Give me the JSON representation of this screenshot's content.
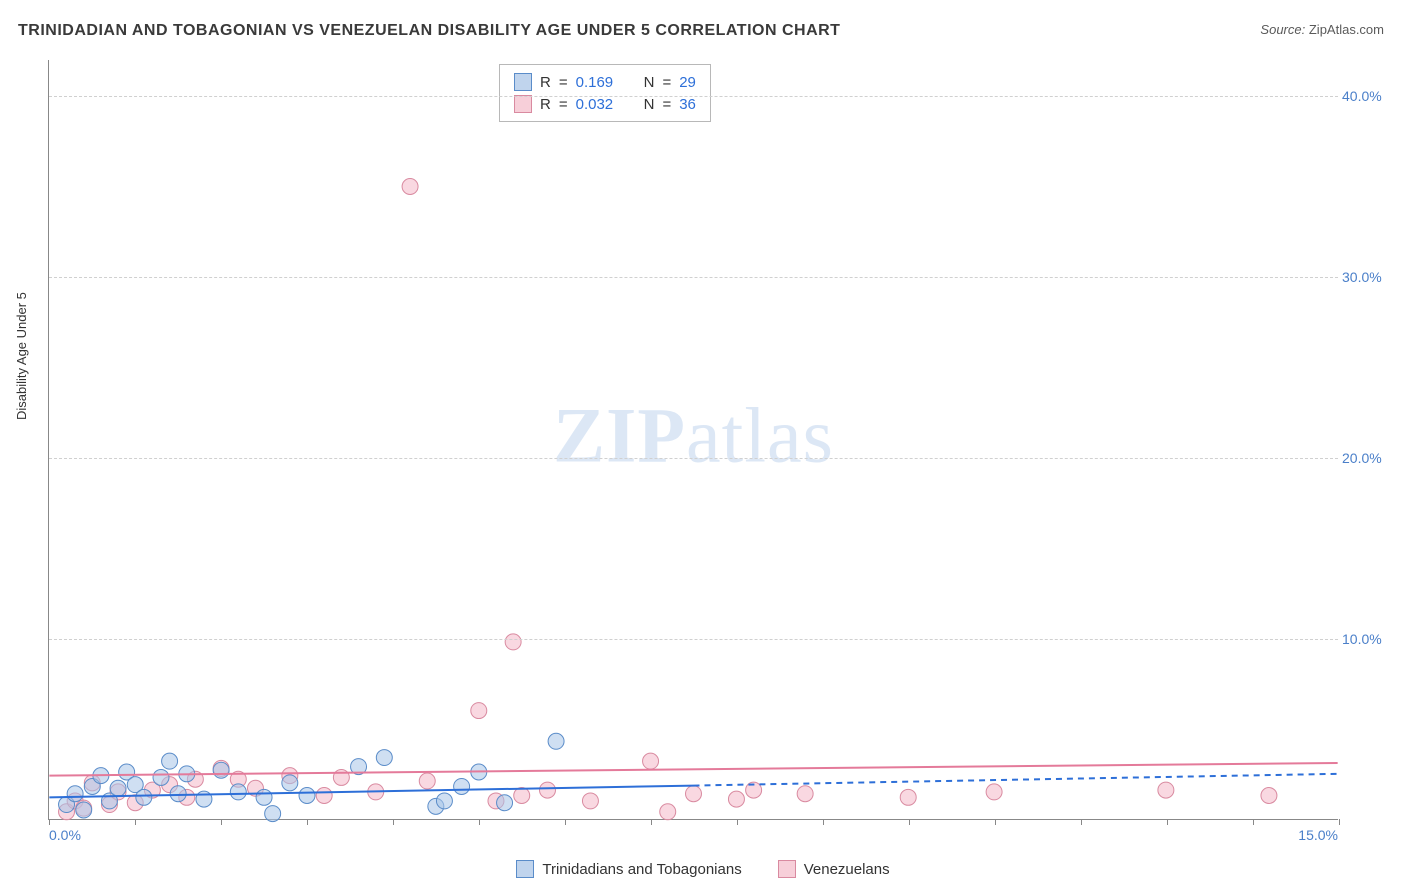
{
  "title": "TRINIDADIAN AND TOBAGONIAN VS VENEZUELAN DISABILITY AGE UNDER 5 CORRELATION CHART",
  "source_label": "Source:",
  "source_value": "ZipAtlas.com",
  "y_axis_label": "Disability Age Under 5",
  "watermark_zip": "ZIP",
  "watermark_atlas": "atlas",
  "chart": {
    "type": "scatter",
    "xlim": [
      0,
      15
    ],
    "ylim": [
      0,
      42
    ],
    "x_origin_label": "0.0%",
    "x_max_label": "15.0%",
    "y_ticks": [
      10,
      20,
      30,
      40
    ],
    "y_tick_labels": [
      "10.0%",
      "20.0%",
      "30.0%",
      "40.0%"
    ],
    "x_tick_step": 1,
    "background_color": "#ffffff",
    "grid_color": "#d0d0d0",
    "axis_color": "#888888",
    "tick_label_color": "#4a7fc9",
    "marker_radius": 8,
    "marker_opacity": 0.55,
    "series": {
      "blue": {
        "label": "Trinidadians and Tobagonians",
        "fill": "#a7c5e8",
        "stroke": "#5a8cc9",
        "R": "0.169",
        "N": "29",
        "trend": {
          "y_at_x0": 1.2,
          "y_at_x15": 2.5,
          "dash_after_x": 7.5,
          "color": "#2d6fd8",
          "width": 2
        },
        "points": [
          {
            "x": 0.2,
            "y": 0.8
          },
          {
            "x": 0.3,
            "y": 1.4
          },
          {
            "x": 0.4,
            "y": 0.5
          },
          {
            "x": 0.5,
            "y": 1.8
          },
          {
            "x": 0.6,
            "y": 2.4
          },
          {
            "x": 0.7,
            "y": 1.0
          },
          {
            "x": 0.8,
            "y": 1.7
          },
          {
            "x": 0.9,
            "y": 2.6
          },
          {
            "x": 1.0,
            "y": 1.9
          },
          {
            "x": 1.1,
            "y": 1.2
          },
          {
            "x": 1.3,
            "y": 2.3
          },
          {
            "x": 1.4,
            "y": 3.2
          },
          {
            "x": 1.5,
            "y": 1.4
          },
          {
            "x": 1.6,
            "y": 2.5
          },
          {
            "x": 1.8,
            "y": 1.1
          },
          {
            "x": 2.0,
            "y": 2.7
          },
          {
            "x": 2.2,
            "y": 1.5
          },
          {
            "x": 2.5,
            "y": 1.2
          },
          {
            "x": 2.6,
            "y": 0.3
          },
          {
            "x": 2.8,
            "y": 2.0
          },
          {
            "x": 3.0,
            "y": 1.3
          },
          {
            "x": 3.6,
            "y": 2.9
          },
          {
            "x": 3.9,
            "y": 3.4
          },
          {
            "x": 4.5,
            "y": 0.7
          },
          {
            "x": 4.6,
            "y": 1.0
          },
          {
            "x": 4.8,
            "y": 1.8
          },
          {
            "x": 5.0,
            "y": 2.6
          },
          {
            "x": 5.3,
            "y": 0.9
          },
          {
            "x": 5.9,
            "y": 4.3
          }
        ]
      },
      "pink": {
        "label": "Venezuelans",
        "fill": "#f4b8c8",
        "stroke": "#d98aa0",
        "R": "0.032",
        "N": "36",
        "trend": {
          "y_at_x0": 2.4,
          "y_at_x15": 3.1,
          "color": "#e47a9a",
          "width": 2
        },
        "points": [
          {
            "x": 0.2,
            "y": 0.4
          },
          {
            "x": 0.3,
            "y": 1.0
          },
          {
            "x": 0.4,
            "y": 0.6
          },
          {
            "x": 0.5,
            "y": 2.0
          },
          {
            "x": 0.7,
            "y": 0.8
          },
          {
            "x": 0.8,
            "y": 1.5
          },
          {
            "x": 1.0,
            "y": 0.9
          },
          {
            "x": 1.2,
            "y": 1.6
          },
          {
            "x": 1.4,
            "y": 1.9
          },
          {
            "x": 1.6,
            "y": 1.2
          },
          {
            "x": 1.7,
            "y": 2.2
          },
          {
            "x": 2.0,
            "y": 2.8
          },
          {
            "x": 2.2,
            "y": 2.2
          },
          {
            "x": 2.4,
            "y": 1.7
          },
          {
            "x": 2.8,
            "y": 2.4
          },
          {
            "x": 3.2,
            "y": 1.3
          },
          {
            "x": 3.4,
            "y": 2.3
          },
          {
            "x": 3.8,
            "y": 1.5
          },
          {
            "x": 4.2,
            "y": 35.0
          },
          {
            "x": 4.4,
            "y": 2.1
          },
          {
            "x": 5.0,
            "y": 6.0
          },
          {
            "x": 5.2,
            "y": 1.0
          },
          {
            "x": 5.4,
            "y": 9.8
          },
          {
            "x": 5.5,
            "y": 1.3
          },
          {
            "x": 5.8,
            "y": 1.6
          },
          {
            "x": 6.3,
            "y": 1.0
          },
          {
            "x": 7.0,
            "y": 3.2
          },
          {
            "x": 7.2,
            "y": 0.4
          },
          {
            "x": 7.5,
            "y": 1.4
          },
          {
            "x": 8.0,
            "y": 1.1
          },
          {
            "x": 8.2,
            "y": 1.6
          },
          {
            "x": 8.8,
            "y": 1.4
          },
          {
            "x": 10.0,
            "y": 1.2
          },
          {
            "x": 11.0,
            "y": 1.5
          },
          {
            "x": 13.0,
            "y": 1.6
          },
          {
            "x": 14.2,
            "y": 1.3
          }
        ]
      }
    },
    "legend_stats": {
      "R_label": "R",
      "N_label": "N",
      "equals": "="
    }
  }
}
